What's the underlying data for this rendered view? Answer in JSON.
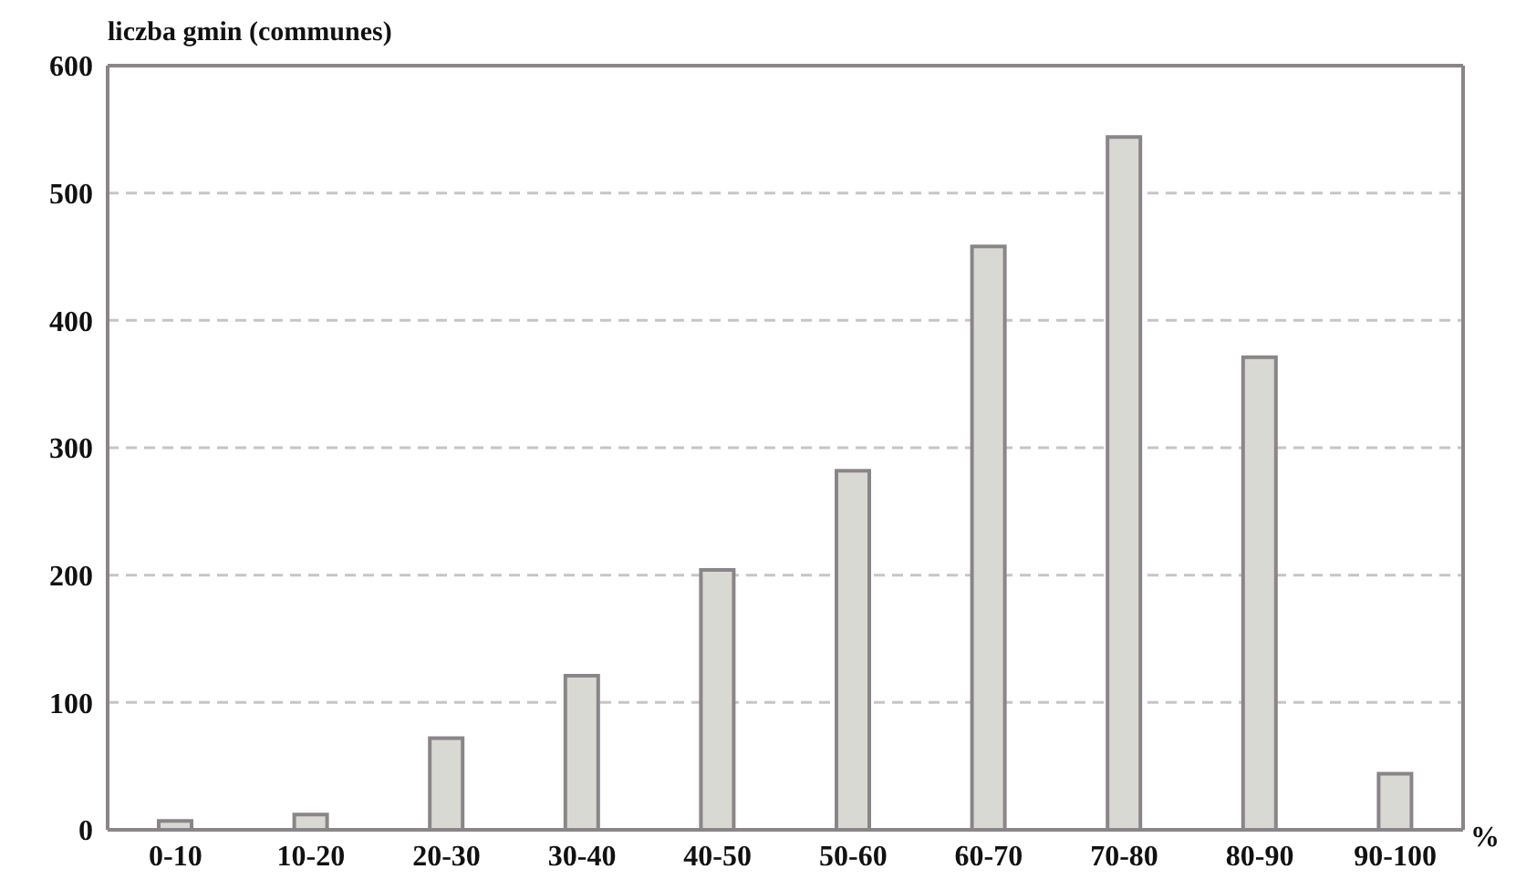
{
  "chart_data": {
    "type": "bar",
    "ylabel": "liczba gmin (communes)",
    "xlabel": "%",
    "categories": [
      "0-10",
      "10-20",
      "20-30",
      "30-40",
      "40-50",
      "50-60",
      "60-70",
      "70-80",
      "80-90",
      "90-100"
    ],
    "values": [
      7,
      12,
      72,
      121,
      204,
      282,
      458,
      544,
      371,
      44
    ],
    "color": "#d9d9d3",
    "ylim": [
      0,
      600
    ],
    "yticks": [
      0,
      100,
      200,
      300,
      400,
      500,
      600
    ],
    "grid": "y"
  }
}
